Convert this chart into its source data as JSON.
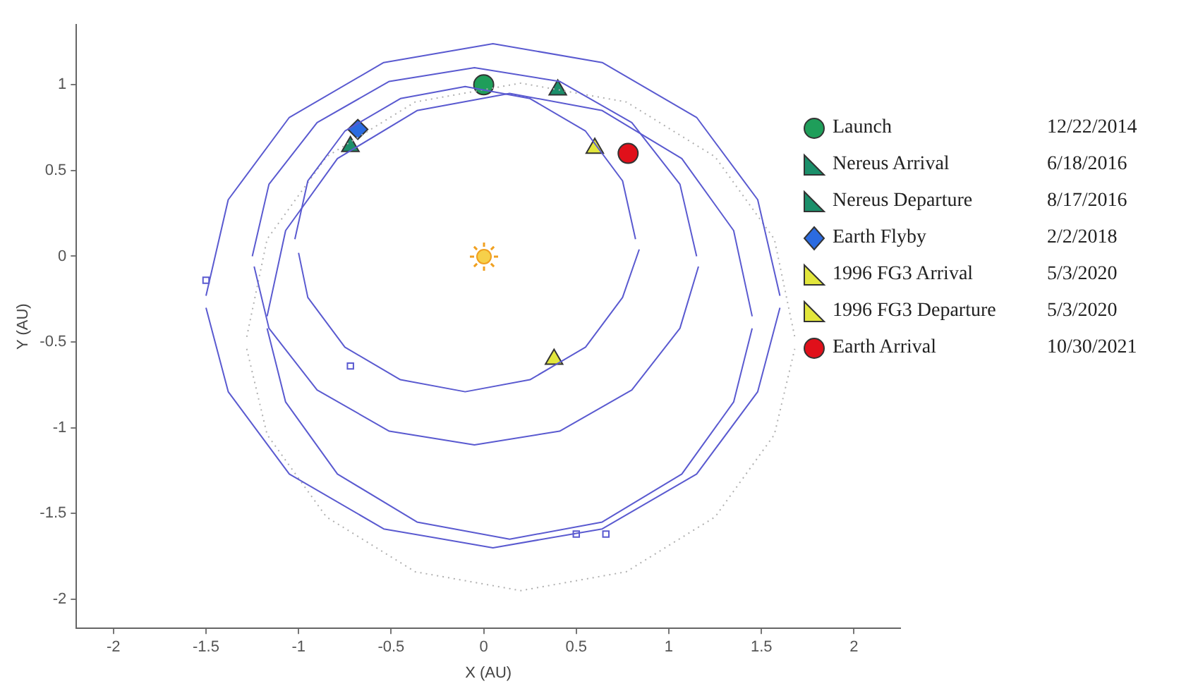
{
  "chart_data": {
    "type": "scatter",
    "xlabel": "X (AU)",
    "ylabel": "Y (AU)",
    "xlim": [
      -2.2,
      2.25
    ],
    "ylim": [
      -2.17,
      1.35
    ],
    "xticks": [
      -2,
      -1.5,
      -1,
      -0.5,
      0,
      0.5,
      1,
      1.5,
      2
    ],
    "yticks": [
      -2,
      -1.5,
      -1,
      -0.5,
      0,
      0.5,
      1
    ],
    "grid": false,
    "legend": "right",
    "annotations": [
      "12/22/2014",
      "6/18/2016",
      "8/17/2016",
      "2/2/2018",
      "5/3/2020",
      "5/3/2020",
      "10/30/2021"
    ],
    "series": [
      {
        "type": "line",
        "color": "#5a5ad0",
        "marker": "none",
        "line_style": "solid",
        "x": [
          -1.02,
          -0.95,
          -0.75,
          -0.45,
          -0.1,
          0.25,
          0.55,
          0.75,
          0.82
        ],
        "values": [
          0.1,
          0.44,
          0.73,
          0.92,
          0.99,
          0.92,
          0.73,
          0.44,
          0.1
        ]
      },
      {
        "type": "line",
        "color": "#5a5ad0",
        "marker": "none",
        "line_style": "solid",
        "x": [
          -1.0,
          -0.95,
          -0.75,
          -0.45,
          -0.1,
          0.25,
          0.55,
          0.75,
          0.84
        ],
        "values": [
          0.02,
          -0.24,
          -0.53,
          -0.72,
          -0.79,
          -0.72,
          -0.53,
          -0.24,
          0.04
        ]
      },
      {
        "type": "line",
        "color": "#5a5ad0",
        "marker": "none",
        "line_style": "solid",
        "x": [
          -1.25,
          -1.16,
          -0.9,
          -0.51,
          -0.05,
          0.41,
          0.8,
          1.06,
          1.15
        ],
        "values": [
          0,
          0.42,
          0.78,
          1.02,
          1.1,
          1.02,
          0.78,
          0.42,
          0
        ]
      },
      {
        "type": "line",
        "color": "#5a5ad0",
        "marker": "none",
        "line_style": "solid",
        "x": [
          -1.24,
          -1.16,
          -0.9,
          -0.51,
          -0.05,
          0.41,
          0.8,
          1.06,
          1.16
        ],
        "values": [
          -0.06,
          -0.42,
          -0.78,
          -1.02,
          -1.1,
          -1.02,
          -0.78,
          -0.42,
          -0.06
        ]
      },
      {
        "type": "line",
        "color": "#5a5ad0",
        "marker": "none",
        "line_style": "solid",
        "x": [
          -1.5,
          -1.38,
          -1.05,
          -0.54,
          0.05,
          0.64,
          1.15,
          1.48,
          1.6
        ],
        "values": [
          -0.23,
          0.33,
          0.81,
          1.13,
          1.24,
          1.13,
          0.81,
          0.33,
          -0.23
        ]
      },
      {
        "type": "line",
        "color": "#5a5ad0",
        "marker": "none",
        "line_style": "solid",
        "x": [
          -1.5,
          -1.38,
          -1.05,
          -0.54,
          0.05,
          0.64,
          1.15,
          1.48,
          1.6
        ],
        "values": [
          -0.3,
          -0.79,
          -1.27,
          -1.59,
          -1.7,
          -1.59,
          -1.27,
          -0.79,
          -0.3
        ]
      },
      {
        "type": "line",
        "color": "#5a5ad0",
        "marker": "none",
        "line_style": "solid",
        "x": [
          -1.17,
          -1.07,
          -0.79,
          -0.36,
          0.14,
          0.64,
          1.07,
          1.35,
          1.45
        ],
        "values": [
          -0.35,
          0.15,
          0.57,
          0.85,
          0.95,
          0.85,
          0.57,
          0.15,
          -0.35
        ]
      },
      {
        "type": "line",
        "color": "#5a5ad0",
        "marker": "none",
        "line_style": "solid",
        "x": [
          -1.17,
          -1.07,
          -0.79,
          -0.36,
          0.14,
          0.64,
          1.07,
          1.35,
          1.45
        ],
        "values": [
          -0.42,
          -0.85,
          -1.27,
          -1.55,
          -1.65,
          -1.55,
          -1.27,
          -0.85,
          -0.42
        ]
      },
      {
        "type": "line",
        "color": "#b0b0b0",
        "marker": "none",
        "line_style": "dotted",
        "x": [
          -1.28,
          -1.17,
          -0.85,
          -0.37,
          0.2,
          0.77,
          1.25,
          1.57,
          1.68
        ],
        "values": [
          -0.47,
          0.1,
          0.58,
          0.9,
          1.01,
          0.9,
          0.58,
          0.1,
          -0.47
        ]
      },
      {
        "type": "line",
        "color": "#b0b0b0",
        "marker": "none",
        "line_style": "dotted",
        "x": [
          -1.28,
          -1.17,
          -0.85,
          -0.37,
          0.2,
          0.77,
          1.25,
          1.57,
          1.68
        ],
        "values": [
          -0.54,
          -1.04,
          -1.52,
          -1.84,
          -1.95,
          -1.84,
          -1.52,
          -1.04,
          -0.54
        ]
      },
      {
        "type": "scatter",
        "color": "#5a5ad0",
        "marker": "square",
        "x": [
          -1.5,
          -0.72,
          0.5,
          0.66
        ],
        "values": [
          -0.14,
          -0.64,
          -1.62,
          -1.62
        ]
      },
      {
        "name": "Launch",
        "type": "scatter",
        "color": "#1f9e5a",
        "marker": "circle",
        "x": [
          0
        ],
        "values": [
          1
        ]
      },
      {
        "name": "Nereus Arrival",
        "type": "scatter",
        "color": "#1b8f6a",
        "marker": "triangle",
        "x": [
          0.4
        ],
        "values": [
          0.97
        ]
      },
      {
        "name": "Nereus Departure",
        "type": "scatter",
        "color": "#1b8f6a",
        "marker": "triangle",
        "x": [
          -0.72
        ],
        "values": [
          0.64
        ]
      },
      {
        "name": "Earth Flyby",
        "type": "scatter",
        "color": "#2b6be0",
        "marker": "diamond",
        "x": [
          -0.68
        ],
        "values": [
          0.74
        ]
      },
      {
        "name": "1996 FG3 Arrival",
        "type": "scatter",
        "color": "#e2e63c",
        "marker": "triangle",
        "x": [
          0.38
        ],
        "values": [
          -0.6
        ]
      },
      {
        "name": "1996 FG3 Departure",
        "type": "scatter",
        "color": "#e2e63c",
        "marker": "triangle",
        "x": [
          0.6
        ],
        "values": [
          0.63
        ]
      },
      {
        "name": "Earth Arrival",
        "type": "scatter",
        "color": "#e0101a",
        "marker": "circle",
        "x": [
          0.78
        ],
        "values": [
          0.6
        ]
      }
    ]
  }
}
